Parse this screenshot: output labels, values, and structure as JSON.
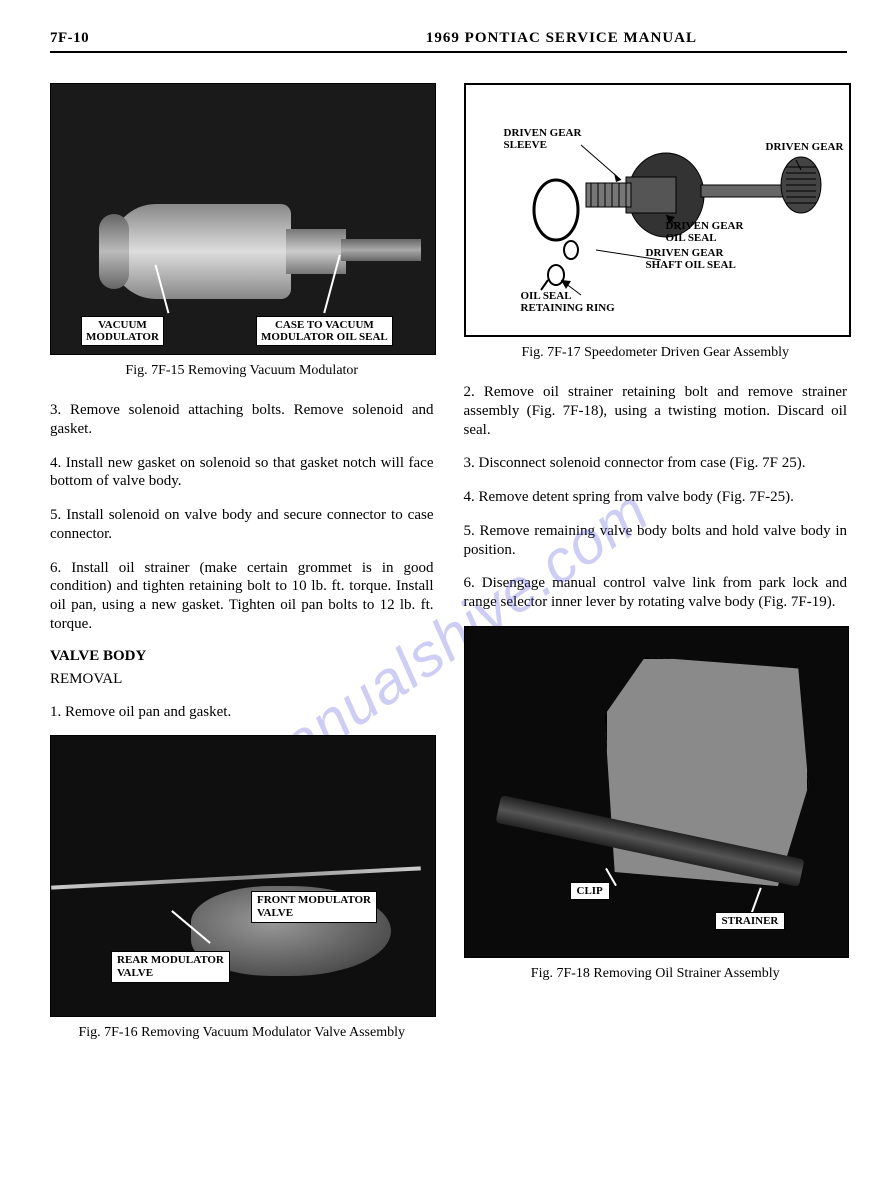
{
  "header": {
    "page_number": "7F-10",
    "title": "1969 PONTIAC SERVICE MANUAL"
  },
  "watermark": "manualshive.com",
  "left_column": {
    "fig15": {
      "caption": "Fig. 7F-15 Removing Vacuum Modulator",
      "label_left": "VACUUM\nMODULATOR",
      "label_right": "CASE TO VACUUM\nMODULATOR OIL SEAL"
    },
    "p3": "3. Remove solenoid attaching bolts. Remove solenoid and gasket.",
    "p4": "4. Install new gasket on solenoid so that gasket notch will face bottom of valve body.",
    "p5": "5. Install solenoid on valve body and secure connector to case connector.",
    "p6": "6. Install oil strainer (make certain grommet is in good condition) and tighten retaining bolt to 10 lb. ft. torque. Install oil pan, using a new gasket. Tighten oil pan bolts to 12 lb. ft. torque.",
    "section": "VALVE BODY",
    "subsection": "REMOVAL",
    "p1b": "1. Remove oil pan and gasket.",
    "fig16": {
      "caption": "Fig. 7F-16 Removing Vacuum Modulator Valve Assembly",
      "label_fm": "FRONT MODULATOR\nVALVE",
      "label_rm": "REAR MODULATOR\nVALVE"
    }
  },
  "right_column": {
    "fig17": {
      "caption": "Fig. 7F-17 Speedometer Driven Gear Assembly",
      "labels": {
        "sleeve": "DRIVEN GEAR\nSLEEVE",
        "gear": "DRIVEN GEAR",
        "oil_seal": "DRIVEN GEAR\nOIL SEAL",
        "shaft_seal": "DRIVEN GEAR\nSHAFT OIL SEAL",
        "ring": "OIL SEAL\nRETAINING RING"
      }
    },
    "p2": "2. Remove oil strainer retaining bolt and remove strainer assembly (Fig. 7F-18), using a twisting motion. Discard oil seal.",
    "p3": "3. Disconnect solenoid connector from case (Fig. 7F 25).",
    "p4": "4. Remove detent spring from valve body (Fig. 7F-25).",
    "p5": "5. Remove remaining valve body bolts and hold valve body in position.",
    "p6": "6. Disengage manual control valve link from park lock and range selector inner lever by rotating valve body (Fig. 7F-19).",
    "fig18": {
      "caption": "Fig. 7F-18 Removing Oil Strainer Assembly",
      "label_clip": "CLIP",
      "label_strainer": "STRAINER"
    }
  }
}
